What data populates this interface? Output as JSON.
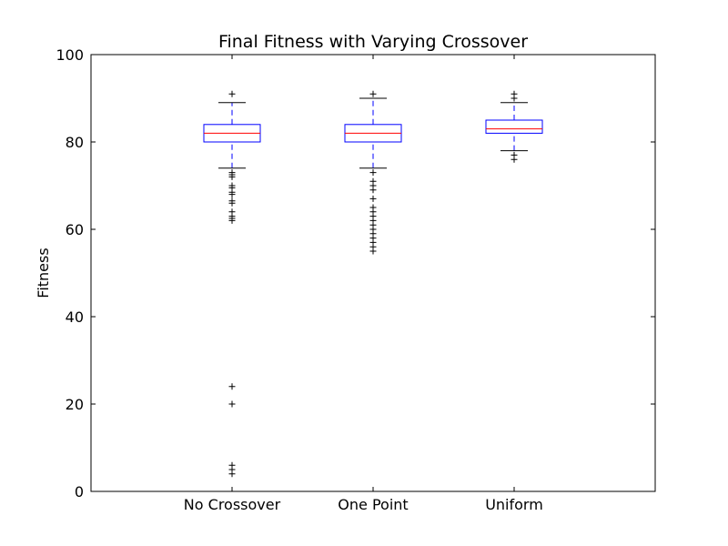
{
  "chart_data": {
    "type": "box",
    "title": "Final Fitness with Varying Crossover",
    "xlabel": "",
    "ylabel": "Fitness",
    "ylim": [
      0,
      100
    ],
    "yticks": [
      0,
      20,
      40,
      60,
      80,
      100
    ],
    "grid": false,
    "categories": [
      "No Crossover",
      "One Point",
      "Uniform"
    ],
    "boxes": [
      {
        "label": "No Crossover",
        "whisker_low": 74,
        "q1": 80,
        "median": 82,
        "q3": 84,
        "whisker_high": 89,
        "outliers": [
          91,
          73,
          72.5,
          72,
          70,
          69.5,
          68.5,
          68,
          66.5,
          66,
          64,
          63,
          62.5,
          62,
          24,
          20,
          6,
          5,
          4
        ]
      },
      {
        "label": "One Point",
        "whisker_low": 74,
        "q1": 80,
        "median": 82,
        "q3": 84,
        "whisker_high": 90,
        "outliers": [
          91,
          73,
          71,
          70,
          69,
          67,
          65,
          64,
          63,
          62,
          61,
          60,
          59,
          58,
          57,
          56,
          55
        ]
      },
      {
        "label": "Uniform",
        "whisker_low": 78,
        "q1": 82,
        "median": 83,
        "q3": 85,
        "whisker_high": 89,
        "outliers": [
          91,
          90,
          77,
          76
        ]
      }
    ],
    "colors": {
      "box": "#0000ff",
      "median": "#ff0000",
      "whisker_cap": "#000000",
      "flier": "#000000"
    }
  }
}
